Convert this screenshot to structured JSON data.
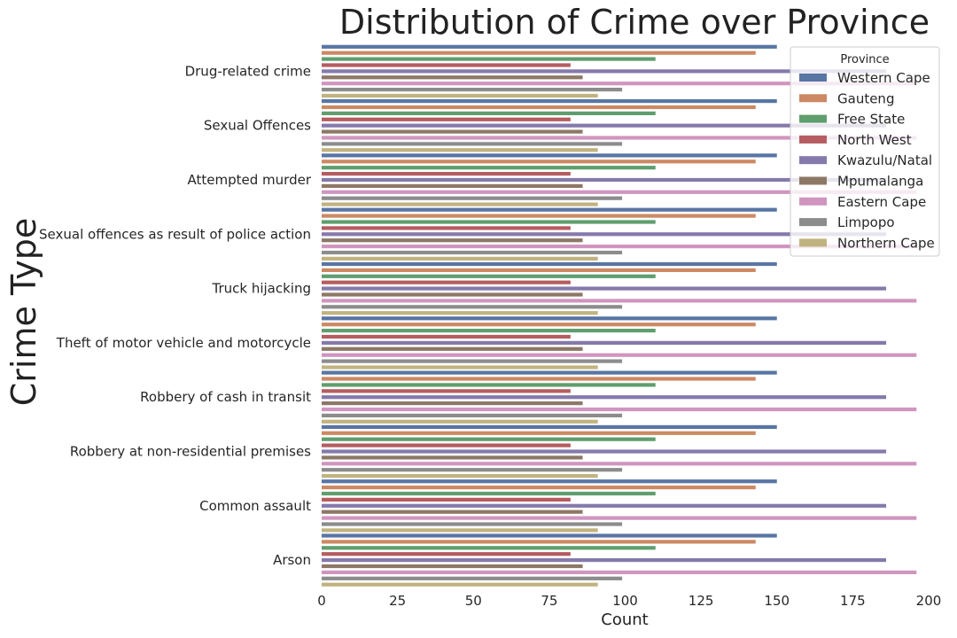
{
  "chart_data": {
    "type": "bar",
    "orientation": "horizontal",
    "title": "Distribution of Crime over Province",
    "xlabel": "Count",
    "ylabel": "Crime Type",
    "xlim": [
      0,
      200
    ],
    "xticks": [
      "0",
      "25",
      "50",
      "75",
      "100",
      "125",
      "150",
      "175",
      "200"
    ],
    "grid": false,
    "legend_title": "Province",
    "legend_position": "top-right",
    "categories": [
      "Drug-related crime",
      "Sexual Offences",
      "Attempted murder",
      "Sexual offences as result of police action",
      "Truck hijacking",
      "Theft of motor vehicle and motorcycle",
      "Robbery of cash in transit",
      "Robbery at non-residential premises",
      "Common assault",
      "Arson"
    ],
    "series": [
      {
        "name": "Western Cape",
        "color": "#5875a4",
        "values": [
          150,
          150,
          150,
          150,
          150,
          150,
          150,
          150,
          150,
          150
        ]
      },
      {
        "name": "Gauteng",
        "color": "#cc8963",
        "values": [
          143,
          143,
          143,
          143,
          143,
          143,
          143,
          143,
          143,
          143
        ]
      },
      {
        "name": "Free State",
        "color": "#5f9e6e",
        "values": [
          110,
          110,
          110,
          110,
          110,
          110,
          110,
          110,
          110,
          110
        ]
      },
      {
        "name": "North West",
        "color": "#b55d60",
        "values": [
          82,
          82,
          82,
          82,
          82,
          82,
          82,
          82,
          82,
          82
        ]
      },
      {
        "name": "Kwazulu/Natal",
        "color": "#857aab",
        "values": [
          186,
          186,
          186,
          186,
          186,
          186,
          186,
          186,
          186,
          186
        ]
      },
      {
        "name": "Mpumalanga",
        "color": "#8d7866",
        "values": [
          86,
          86,
          86,
          86,
          86,
          86,
          86,
          86,
          86,
          86
        ]
      },
      {
        "name": "Eastern Cape",
        "color": "#d095bf",
        "values": [
          196,
          196,
          196,
          196,
          196,
          196,
          196,
          196,
          196,
          196
        ]
      },
      {
        "name": "Limpopo",
        "color": "#8c8c8c",
        "values": [
          99,
          99,
          99,
          99,
          99,
          99,
          99,
          99,
          99,
          99
        ]
      },
      {
        "name": "Northern Cape",
        "color": "#c1b37f",
        "values": [
          91,
          91,
          91,
          91,
          91,
          91,
          91,
          91,
          91,
          91
        ]
      }
    ]
  }
}
